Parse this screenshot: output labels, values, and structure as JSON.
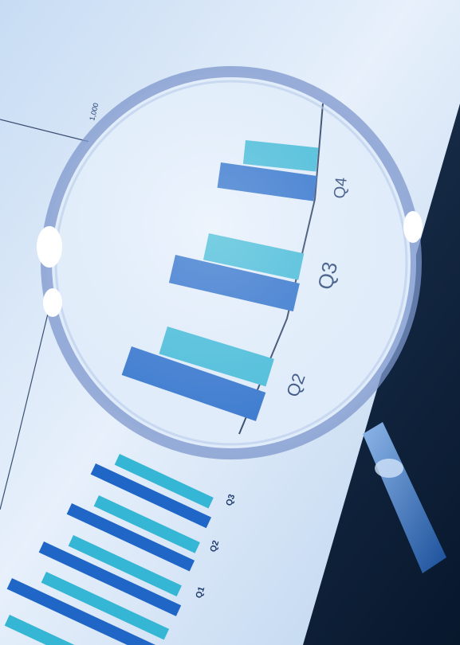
{
  "photo": {
    "gridline_label": "1,000",
    "magnified_labels": [
      "Q2",
      "Q3",
      "Q4"
    ],
    "small_labels": [
      "Q1",
      "Q2",
      "Q3"
    ],
    "colors": {
      "paper": "#dbe8f7",
      "paper_light": "#eef5fc",
      "shadow": "#0c1e36",
      "bar_dark": "#1f66c7",
      "bar_teal": "#34b6d4",
      "lens_rim": "#7d97cc",
      "label": "#1f3c6e"
    }
  }
}
